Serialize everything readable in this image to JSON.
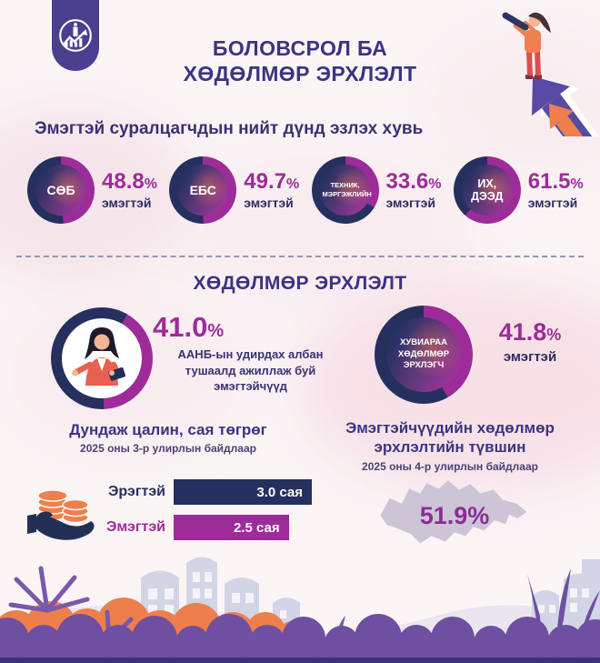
{
  "misc": {
    "percent_sign": "%"
  },
  "colors": {
    "navy": "#25305e",
    "magenta": "#9e2b9a",
    "dark_purple": "#3b3383",
    "orange": "#ee7f4c",
    "map_gray": "#cbc5d6",
    "background": "#fbf5f6"
  },
  "icons": {
    "logo": "statistics-office-emblem",
    "header_illustration": "woman-telescope-growth-arrow",
    "salary": "hand-with-coins",
    "map": "mongolia-map",
    "managers": "businesswoman"
  },
  "header": {
    "title": "БОЛОВСРОЛ БА ХӨДӨЛМӨР ЭРХЛЭЛТ"
  },
  "education": {
    "heading": "Эмэгтэй суралцагчдын нийт дүнд эзлэх хувь",
    "stats": [
      {
        "label": "СӨБ",
        "value": "48.8",
        "percent": 48.8,
        "unit": "эмэгтэй"
      },
      {
        "label": "ЕБС",
        "value": "49.7",
        "percent": 49.7,
        "unit": "эмэгтэй"
      },
      {
        "label": "ТЕХНИК, МЭРГЭЖЛИЙН",
        "value": "33.6",
        "percent": 33.6,
        "unit": "эмэгтэй"
      },
      {
        "label": "ИХ, ДЭЭД",
        "value": "61.5",
        "percent": 61.5,
        "unit": "эмэгтэй"
      }
    ]
  },
  "employment": {
    "heading": "ХӨДӨЛМӨР ЭРХЛЭЛТ",
    "managers": {
      "value": "41.0",
      "percent": 41.0,
      "description": "ААНБ-ын удирдах албан тушаалд ажиллаж буй эмэгтэйчүүд"
    },
    "self_employed": {
      "label": "ХУВИАРАА ХӨДӨЛМӨР ЭРХЛЭГЧ",
      "value": "41.8",
      "percent": 41.8,
      "unit": "эмэгтэй"
    }
  },
  "salary": {
    "heading": "Дундаж цалин, сая төгрөг",
    "subheading": "2025 оны 3-р улирлын байдлаар",
    "bars": [
      {
        "label": "Эрэгтэй",
        "value": "3.0 сая",
        "amount": 3.0
      },
      {
        "label": "Эмэгтэй",
        "value": "2.5 сая",
        "amount": 2.5
      }
    ]
  },
  "employment_rate": {
    "heading": "Эмэгтэйчүүдийн хөдөлмөр эрхлэлтийн түвшин",
    "subheading": "2025 оны 4-р улирлын байдлаар",
    "value": "51.9%"
  },
  "chart_data": [
    {
      "type": "pie",
      "variant": "donut-set",
      "title": "Эмэгтэй суралцагчдын нийт дүнд эзлэх хувь",
      "items": [
        {
          "label": "СӨБ",
          "female_pct": 48.8
        },
        {
          "label": "ЕБС",
          "female_pct": 49.7
        },
        {
          "label": "ТЕХНИК, МЭРГЭЖЛИЙН",
          "female_pct": 33.6
        },
        {
          "label": "ИХ, ДЭЭД",
          "female_pct": 61.5
        }
      ]
    },
    {
      "type": "pie",
      "variant": "donut",
      "label": "ААНБ-ын удирдах албан тушаалд ажиллаж буй эмэгтэйчүүд",
      "value": 41.0
    },
    {
      "type": "pie",
      "variant": "donut",
      "label": "ХУВИАРАА ХӨДӨЛМӨР ЭРХЛЭГЧ",
      "value": 41.8
    },
    {
      "type": "bar",
      "title": "Дундаж цалин, сая төгрөг",
      "subtitle": "2025 оны 3-р улирлын байдлаар",
      "categories": [
        "Эрэгтэй",
        "Эмэгтэй"
      ],
      "values": [
        3.0,
        2.5
      ],
      "unit": "сая төгрөг",
      "xlim": [
        0,
        3.0
      ]
    },
    {
      "type": "map",
      "title": "Эмэгтэйчүүдийн хөдөлмөр эрхлэлтийн түвшин",
      "subtitle": "2025 оны 4-р улирлын байдлаар",
      "region": "Монгол улс",
      "value": 51.9
    }
  ]
}
